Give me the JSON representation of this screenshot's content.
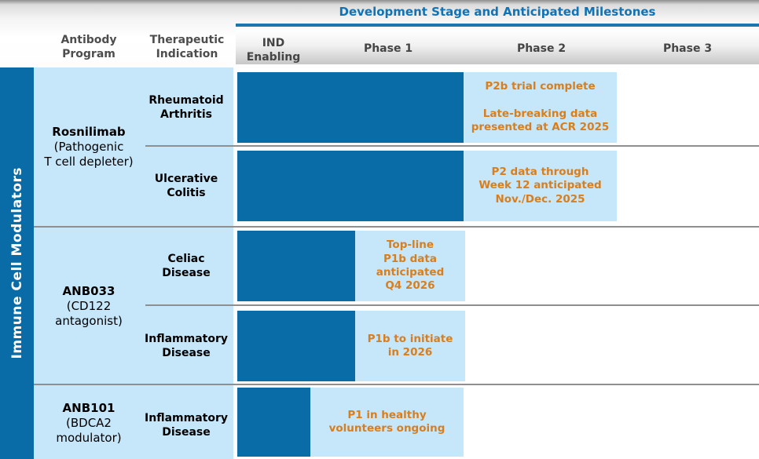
{
  "header": {
    "title": "Development Stage and Anticipated Milestones"
  },
  "columns": {
    "antibody_program_lines": [
      "Antibody",
      "Program"
    ],
    "therapeutic_indication_lines": [
      "Therapeutic",
      "Indication"
    ]
  },
  "stages": [
    [
      "IND",
      "Enabling"
    ],
    [
      "Phase 1"
    ],
    [
      "Phase 2"
    ],
    [
      "Phase 3"
    ]
  ],
  "sidebar": {
    "label": "Immune Cell Modulators"
  },
  "colors": {
    "bar_blue": "#0a6ca6",
    "light_blue": "#c6e6f9",
    "milestone_orange": "#d87e1d",
    "title_blue": "#1273b4",
    "underline_blue": "#1b76b0",
    "divider_gray": "#8f8f8f"
  },
  "programs": [
    {
      "name": "Rosnilimab",
      "descriptor_lines": [
        "(Pathogenic",
        "T cell depleter)"
      ],
      "rows": [
        {
          "indication_lines": [
            "Rheumatoid",
            "Arthritis"
          ],
          "milestone_lines": [
            "P2b trial complete",
            "",
            "Late-breaking data",
            "presented at ACR 2025"
          ]
        },
        {
          "indication_lines": [
            "Ulcerative",
            "Colitis"
          ],
          "milestone_lines": [
            "P2 data through",
            "Week 12 anticipated",
            "Nov./Dec. 2025"
          ]
        }
      ]
    },
    {
      "name": "ANB033",
      "descriptor_lines": [
        "(CD122",
        "antagonist)"
      ],
      "rows": [
        {
          "indication_lines": [
            "Celiac",
            "Disease"
          ],
          "milestone_lines": [
            "Top-line",
            "P1b data",
            "anticipated",
            "Q4 2026"
          ]
        },
        {
          "indication_lines": [
            "Inflammatory",
            "Disease"
          ],
          "milestone_lines": [
            "P1b to initiate",
            "in 2026"
          ]
        }
      ]
    },
    {
      "name": "ANB101",
      "descriptor_lines": [
        "(BDCA2",
        "modulator)"
      ],
      "rows": [
        {
          "indication_lines": [
            "Inflammatory",
            "Disease"
          ],
          "milestone_lines": [
            "P1 in healthy",
            "volunteers ongoing"
          ]
        }
      ]
    }
  ],
  "chart_data": {
    "type": "bar",
    "orientation": "horizontal",
    "title": "Development Stage and Anticipated Milestones",
    "stage_axis": [
      "IND Enabling",
      "Phase 1",
      "Phase 2",
      "Phase 3"
    ],
    "group_label": "Immune Cell Modulators",
    "legend_position": "none",
    "grid": false,
    "rows": [
      {
        "program": "Rosnilimab (Pathogenic T cell depleter)",
        "indication": "Rheumatoid Arthritis",
        "progress_stage_units": 2.0,
        "progress_through": "end of Phase 1",
        "milestone": "P2b trial complete — Late-breaking data presented at ACR 2025",
        "milestone_spans": "Phase 2"
      },
      {
        "program": "Rosnilimab (Pathogenic T cell depleter)",
        "indication": "Ulcerative Colitis",
        "progress_stage_units": 2.0,
        "progress_through": "end of Phase 1",
        "milestone": "P2 data through Week 12 anticipated Nov./Dec. 2025",
        "milestone_spans": "Phase 2"
      },
      {
        "program": "ANB033 (CD122 antagonist)",
        "indication": "Celiac Disease",
        "progress_stage_units": 1.3,
        "progress_through": "early Phase 1",
        "milestone": "Top-line P1b data anticipated Q4 2026",
        "milestone_spans": "Phase 1"
      },
      {
        "program": "ANB033 (CD122 antagonist)",
        "indication": "Inflammatory Disease",
        "progress_stage_units": 1.3,
        "progress_through": "early Phase 1",
        "milestone": "P1b to initiate in 2026",
        "milestone_spans": "Phase 1"
      },
      {
        "program": "ANB101 (BDCA2 modulator)",
        "indication": "Inflammatory Disease",
        "progress_stage_units": 1.0,
        "progress_through": "end of IND Enabling",
        "milestone": "P1 in healthy volunteers ongoing",
        "milestone_spans": "Phase 1"
      }
    ]
  }
}
